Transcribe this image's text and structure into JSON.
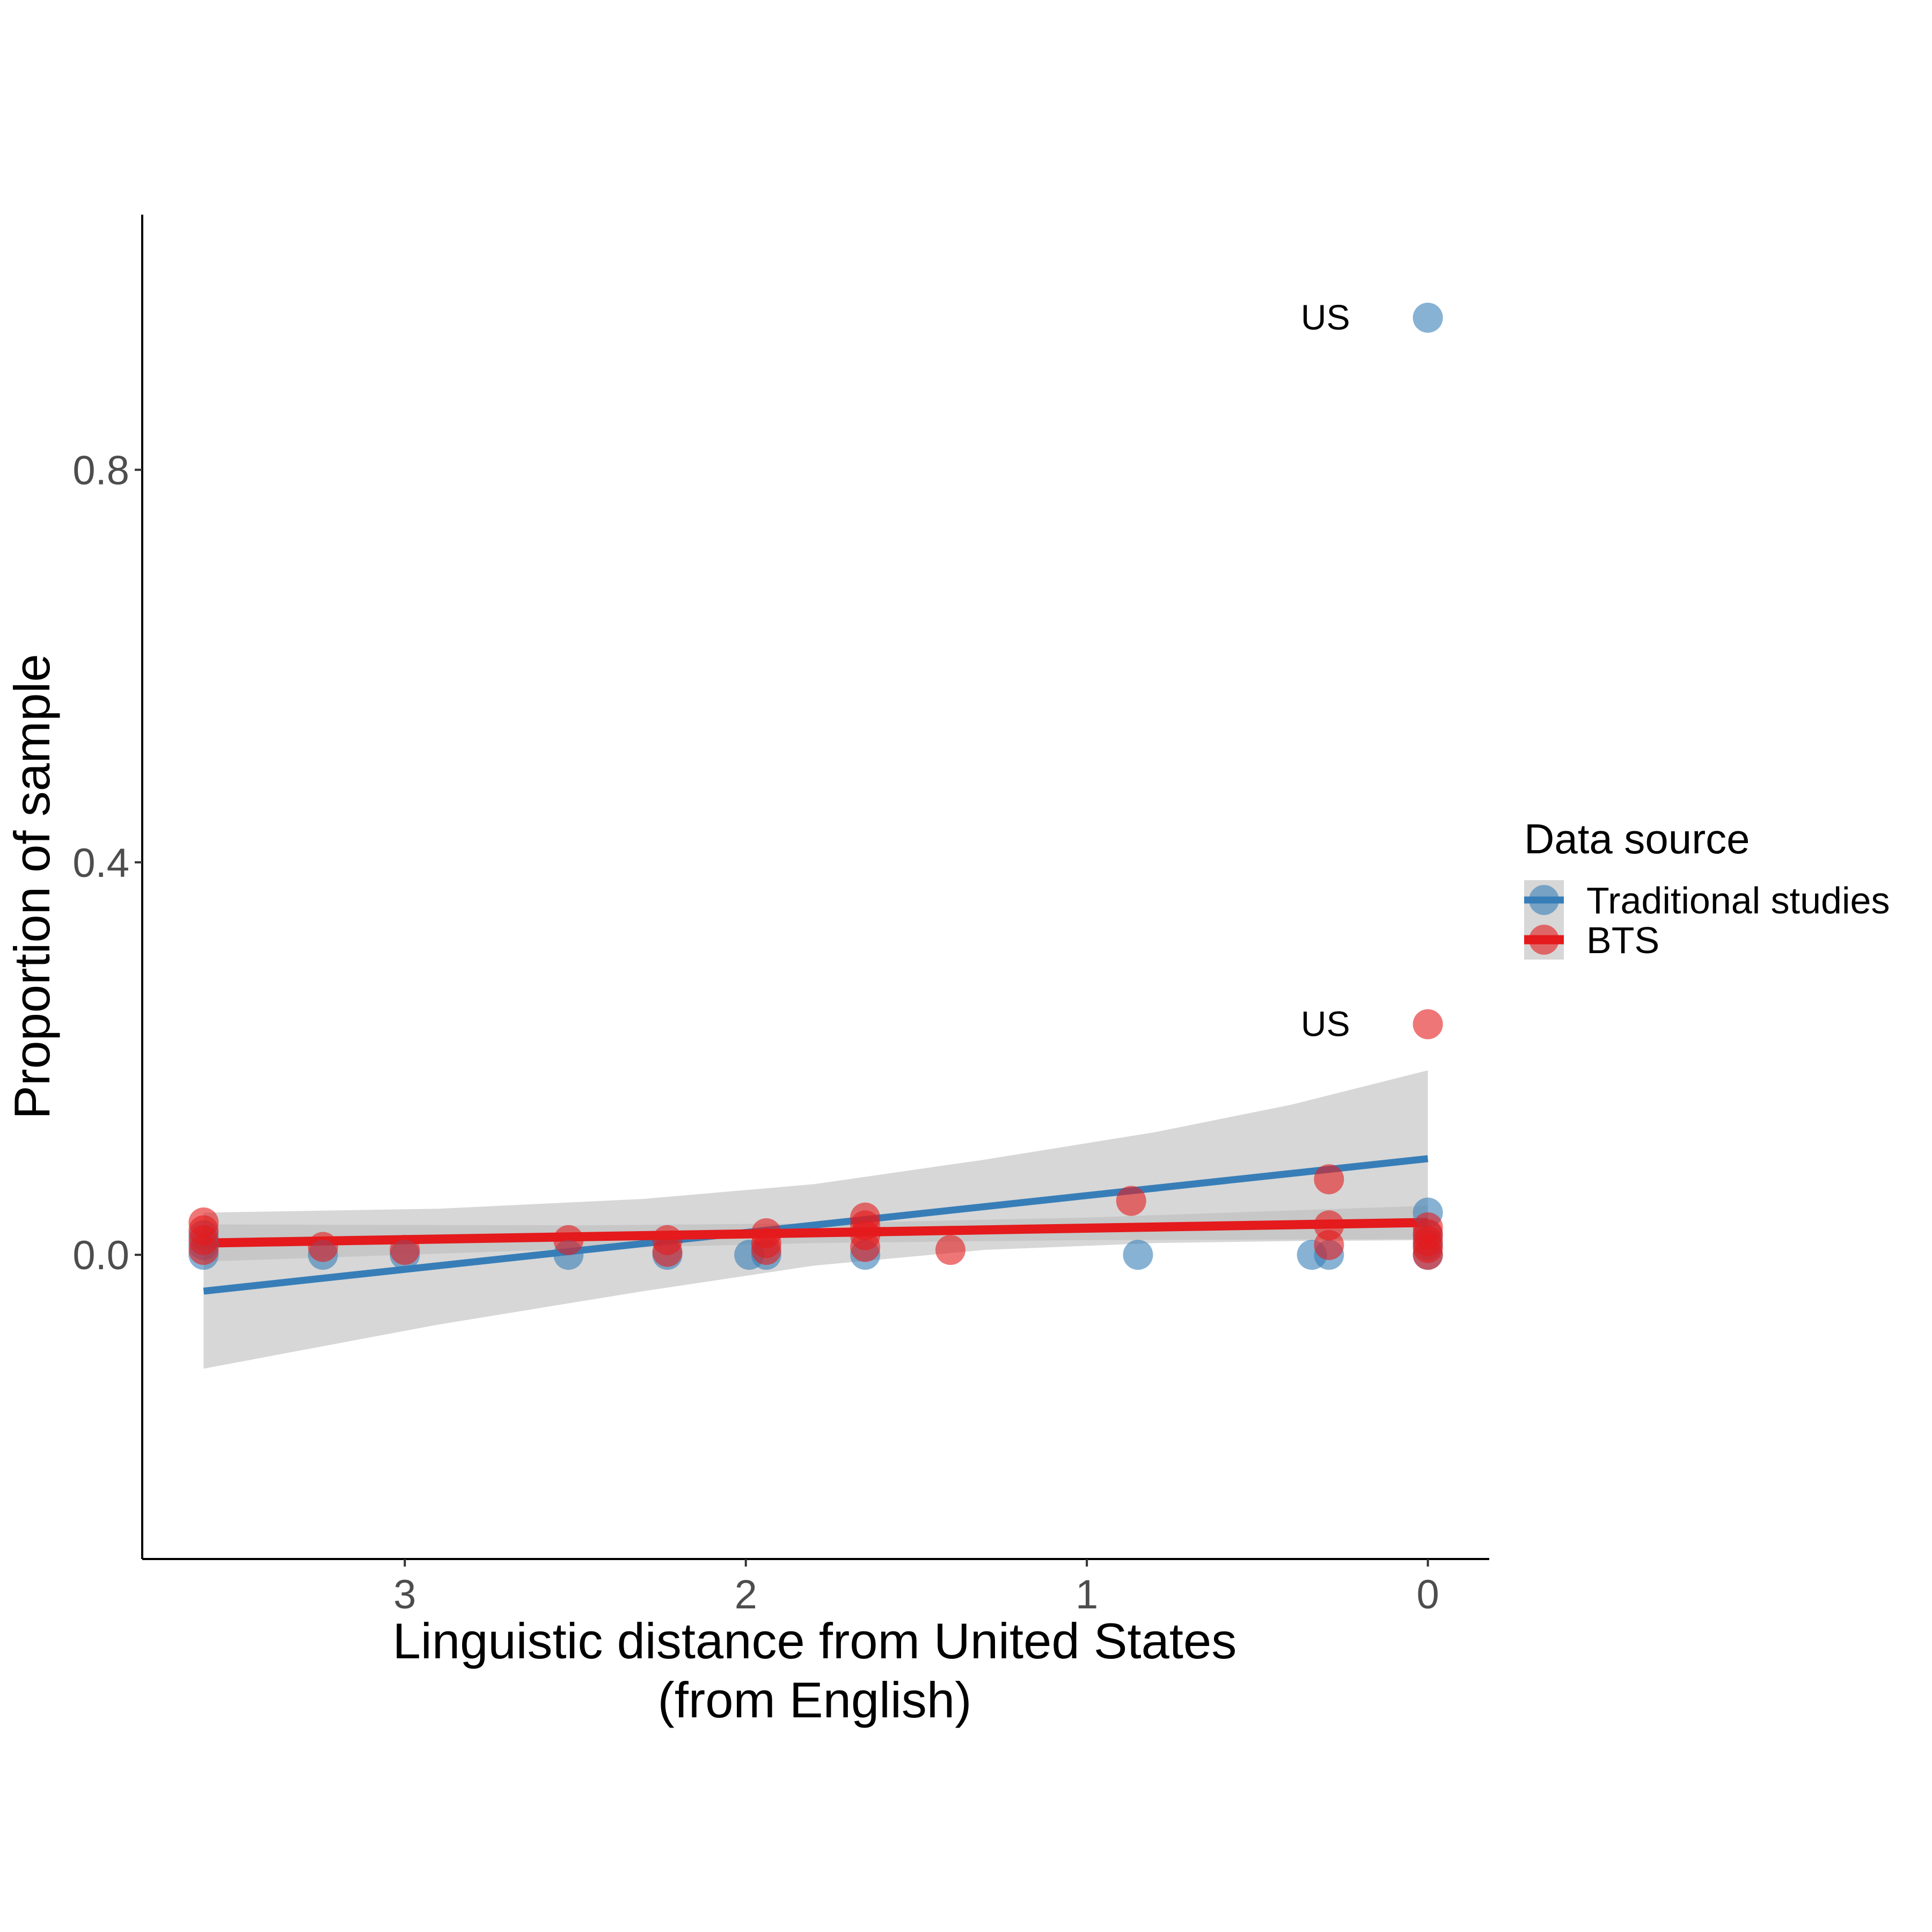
{
  "chart_data": {
    "type": "scatter",
    "xlabel": [
      "Linguistic distance from United States",
      "(from English)"
    ],
    "ylabel": "Proportion of sample",
    "x_reversed": true,
    "xlim": [
      3.77,
      -0.18
    ],
    "ylim": [
      -0.31,
      1.06
    ],
    "x_ticks": [
      3,
      2,
      1,
      0
    ],
    "x_tick_labels": [
      "3",
      "2",
      "1",
      "0"
    ],
    "y_ticks": [
      0.0,
      0.4,
      0.8
    ],
    "y_tick_labels": [
      "0.0",
      "0.4",
      "0.8"
    ],
    "grid": false,
    "legend": {
      "title": "Data source",
      "position": "right",
      "entries": [
        "Traditional studies",
        "BTS"
      ]
    },
    "series": [
      {
        "name": "Traditional studies",
        "color": "#377EB8",
        "points": [
          {
            "x": 3.59,
            "y": 0.0
          },
          {
            "x": 3.59,
            "y": 0.01
          },
          {
            "x": 3.59,
            "y": 0.02
          },
          {
            "x": 3.24,
            "y": 0.0
          },
          {
            "x": 3.0,
            "y": 0.0
          },
          {
            "x": 2.52,
            "y": 0.0
          },
          {
            "x": 2.23,
            "y": 0.0
          },
          {
            "x": 1.99,
            "y": 0.0
          },
          {
            "x": 1.94,
            "y": 0.0
          },
          {
            "x": 1.65,
            "y": 0.0
          },
          {
            "x": 0.85,
            "y": 0.0
          },
          {
            "x": 0.34,
            "y": 0.0
          },
          {
            "x": 0.29,
            "y": 0.0
          },
          {
            "x": 0.0,
            "y": 0.0
          },
          {
            "x": 0.0,
            "y": 0.01
          },
          {
            "x": 0.0,
            "y": 0.02
          },
          {
            "x": 0.0,
            "y": 0.043
          },
          {
            "x": 0.0,
            "y": 0.955
          }
        ],
        "fit": [
          {
            "x": 3.59,
            "y": -0.037
          },
          {
            "x": 0.0,
            "y": 0.098
          }
        ],
        "ci_lower": [
          {
            "x": 3.59,
            "y": -0.116
          },
          {
            "x": 2.9,
            "y": -0.071
          },
          {
            "x": 2.3,
            "y": -0.037
          },
          {
            "x": 1.8,
            "y": -0.011
          },
          {
            "x": 1.3,
            "y": 0.005
          },
          {
            "x": 0.8,
            "y": 0.012
          },
          {
            "x": 0.4,
            "y": 0.014
          },
          {
            "x": 0.0,
            "y": 0.015
          }
        ],
        "ci_upper": [
          {
            "x": 3.59,
            "y": 0.043
          },
          {
            "x": 2.9,
            "y": 0.047
          },
          {
            "x": 2.3,
            "y": 0.057
          },
          {
            "x": 1.8,
            "y": 0.072
          },
          {
            "x": 1.3,
            "y": 0.097
          },
          {
            "x": 0.8,
            "y": 0.125
          },
          {
            "x": 0.4,
            "y": 0.153
          },
          {
            "x": 0.0,
            "y": 0.188
          }
        ]
      },
      {
        "name": "BTS",
        "color": "#E41A1C",
        "points": [
          {
            "x": 3.59,
            "y": 0.005
          },
          {
            "x": 3.59,
            "y": 0.015
          },
          {
            "x": 3.59,
            "y": 0.025
          },
          {
            "x": 3.59,
            "y": 0.033
          },
          {
            "x": 3.24,
            "y": 0.008
          },
          {
            "x": 3.0,
            "y": 0.005
          },
          {
            "x": 2.52,
            "y": 0.015
          },
          {
            "x": 2.23,
            "y": 0.003
          },
          {
            "x": 2.23,
            "y": 0.015
          },
          {
            "x": 1.94,
            "y": 0.005
          },
          {
            "x": 1.94,
            "y": 0.012
          },
          {
            "x": 1.94,
            "y": 0.022
          },
          {
            "x": 1.65,
            "y": 0.008
          },
          {
            "x": 1.65,
            "y": 0.02
          },
          {
            "x": 1.65,
            "y": 0.03
          },
          {
            "x": 1.65,
            "y": 0.038
          },
          {
            "x": 1.4,
            "y": 0.005
          },
          {
            "x": 0.87,
            "y": 0.055
          },
          {
            "x": 0.29,
            "y": 0.01
          },
          {
            "x": 0.29,
            "y": 0.03
          },
          {
            "x": 0.29,
            "y": 0.077
          },
          {
            "x": 0.0,
            "y": 0.0
          },
          {
            "x": 0.0,
            "y": 0.007
          },
          {
            "x": 0.0,
            "y": 0.014
          },
          {
            "x": 0.0,
            "y": 0.021
          },
          {
            "x": 0.0,
            "y": 0.028
          },
          {
            "x": 0.0,
            "y": 0.235
          }
        ],
        "fit": [
          {
            "x": 3.59,
            "y": 0.012
          },
          {
            "x": 0.0,
            "y": 0.033
          }
        ],
        "ci_lower": [
          {
            "x": 3.59,
            "y": -0.007
          },
          {
            "x": 2.5,
            "y": 0.006
          },
          {
            "x": 1.8,
            "y": 0.012
          },
          {
            "x": 1.0,
            "y": 0.015
          },
          {
            "x": 0.0,
            "y": 0.016
          }
        ],
        "ci_upper": [
          {
            "x": 3.59,
            "y": 0.031
          },
          {
            "x": 2.5,
            "y": 0.03
          },
          {
            "x": 1.8,
            "y": 0.032
          },
          {
            "x": 1.0,
            "y": 0.038
          },
          {
            "x": 0.0,
            "y": 0.05
          }
        ]
      }
    ],
    "annotations": [
      {
        "text": "US",
        "x": 0.0,
        "y": 0.955,
        "series": "Traditional studies"
      },
      {
        "text": "US",
        "x": 0.0,
        "y": 0.235,
        "series": "BTS"
      }
    ],
    "ci_color": "#bdbdbd"
  }
}
